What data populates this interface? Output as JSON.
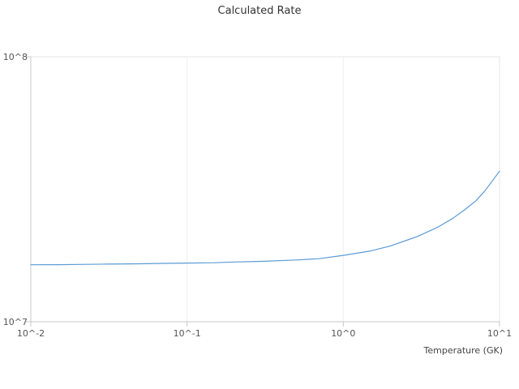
{
  "chart_data": {
    "type": "line",
    "title": "Calculated Rate",
    "xlabel": "Temperature (GK)",
    "ylabel": "",
    "x_scale": "log",
    "y_scale": "log",
    "xlim": [
      0.01,
      10
    ],
    "ylim": [
      10000000,
      100000000
    ],
    "xtick_labels": [
      "10^-2",
      "10^-1",
      "10^0",
      "10^1"
    ],
    "xtick_values": [
      0.01,
      0.1,
      1,
      10
    ],
    "ytick_labels": [
      "10^7",
      "10^8"
    ],
    "ytick_values": [
      10000000,
      100000000
    ],
    "grid": "light major gridlines",
    "legend_position": "none",
    "line_color": "#5b9bd5",
    "series_name": "Calculated Rate",
    "x": [
      0.01,
      0.015,
      0.02,
      0.03,
      0.05,
      0.07,
      0.1,
      0.15,
      0.2,
      0.3,
      0.5,
      0.7,
      1.0,
      1.5,
      2.0,
      3.0,
      4.0,
      5.0,
      6.0,
      7.0,
      8.0,
      9.0,
      10.0
    ],
    "y": [
      16400000,
      16420000,
      16450000,
      16500000,
      16550000,
      16600000,
      16650000,
      16700000,
      16800000,
      16900000,
      17100000,
      17300000,
      17800000,
      18500000,
      19300000,
      21000000,
      22700000,
      24500000,
      26500000,
      28500000,
      31000000,
      34000000,
      37000000
    ]
  }
}
